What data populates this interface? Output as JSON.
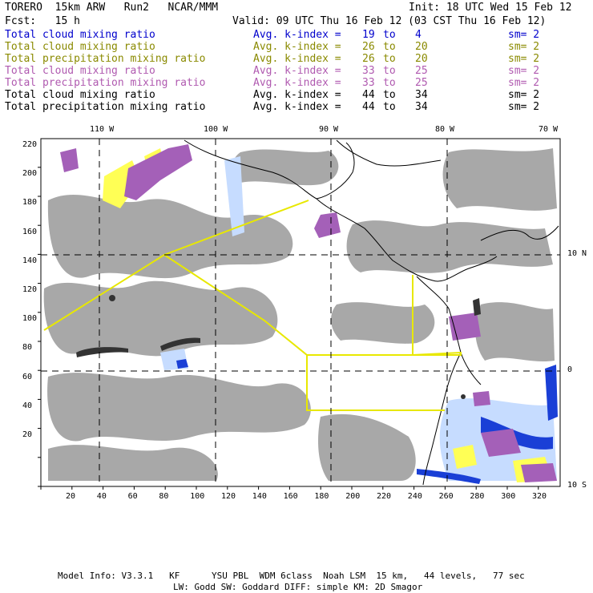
{
  "header": {
    "model": "TORERO  15km ARW   Run2   NCAR/MMM",
    "init": "Init: 18 UTC Wed 15 Feb 12",
    "fcst": "Fcst:   15 h",
    "valid": "Valid: 09 UTC Thu 16 Feb 12 (03 CST Thu 16 Feb 12)"
  },
  "legend": [
    {
      "field": "Total cloud mixing ratio",
      "kindex": "Avg. k-index =",
      "from": "19",
      "to_word": "to",
      "to": "4",
      "sm": "sm= 2",
      "color": "#0000cc"
    },
    {
      "field": "Total cloud mixing ratio",
      "kindex": "Avg. k-index =",
      "from": "26",
      "to_word": "to",
      "to": "20",
      "sm": "sm= 2",
      "color": "#8a8a00"
    },
    {
      "field": "Total precipitation mixing ratio",
      "kindex": "Avg. k-index =",
      "from": "26",
      "to_word": "to",
      "to": "20",
      "sm": "sm= 2",
      "color": "#8a8a00"
    },
    {
      "field": "Total cloud mixing ratio",
      "kindex": "Avg. k-index =",
      "from": "33",
      "to_word": "to",
      "to": "25",
      "sm": "sm= 2",
      "color": "#b05ab0"
    },
    {
      "field": "Total precipitation mixing ratio",
      "kindex": "Avg. k-index =",
      "from": "33",
      "to_word": "to",
      "to": "25",
      "sm": "sm= 2",
      "color": "#b05ab0"
    },
    {
      "field": "Total cloud mixing ratio",
      "kindex": "Avg. k-index =",
      "from": "44",
      "to_word": "to",
      "to": "34",
      "sm": "sm= 2",
      "color": "#000000"
    },
    {
      "field": "Total precipitation mixing ratio",
      "kindex": "Avg. k-index =",
      "from": "44",
      "to_word": "to",
      "to": "34",
      "sm": "sm= 2",
      "color": "#000000"
    }
  ],
  "top_ticks": [
    "110 W",
    "100 W",
    "90 W",
    "80 W",
    "70 W"
  ],
  "right_ticks": [
    "10 N",
    "0",
    "10 S"
  ],
  "left_ticks": [
    "220",
    "200",
    "180",
    "160",
    "140",
    "120",
    "100",
    "80",
    "60",
    "40",
    "20"
  ],
  "bottom_ticks": [
    "20",
    "40",
    "60",
    "80",
    "100",
    "120",
    "140",
    "160",
    "180",
    "200",
    "220",
    "240",
    "260",
    "280",
    "300",
    "320"
  ],
  "footer": {
    "line1": "Model Info: V3.3.1   KF      YSU PBL  WDM 6class  Noah LSM  15 km,   44 levels,   77 sec",
    "line2": "LW: Godd SW: Goddard DIFF: simple KM: 2D Smagor"
  },
  "colors": {
    "cloud_gray": "#a8a8a8",
    "blue": "#1a3fd6",
    "light_blue": "#c6dcff",
    "yellow": "#ffff55",
    "purple": "#a460b8",
    "flight_track": "#e8e800",
    "grid": "#000000"
  }
}
